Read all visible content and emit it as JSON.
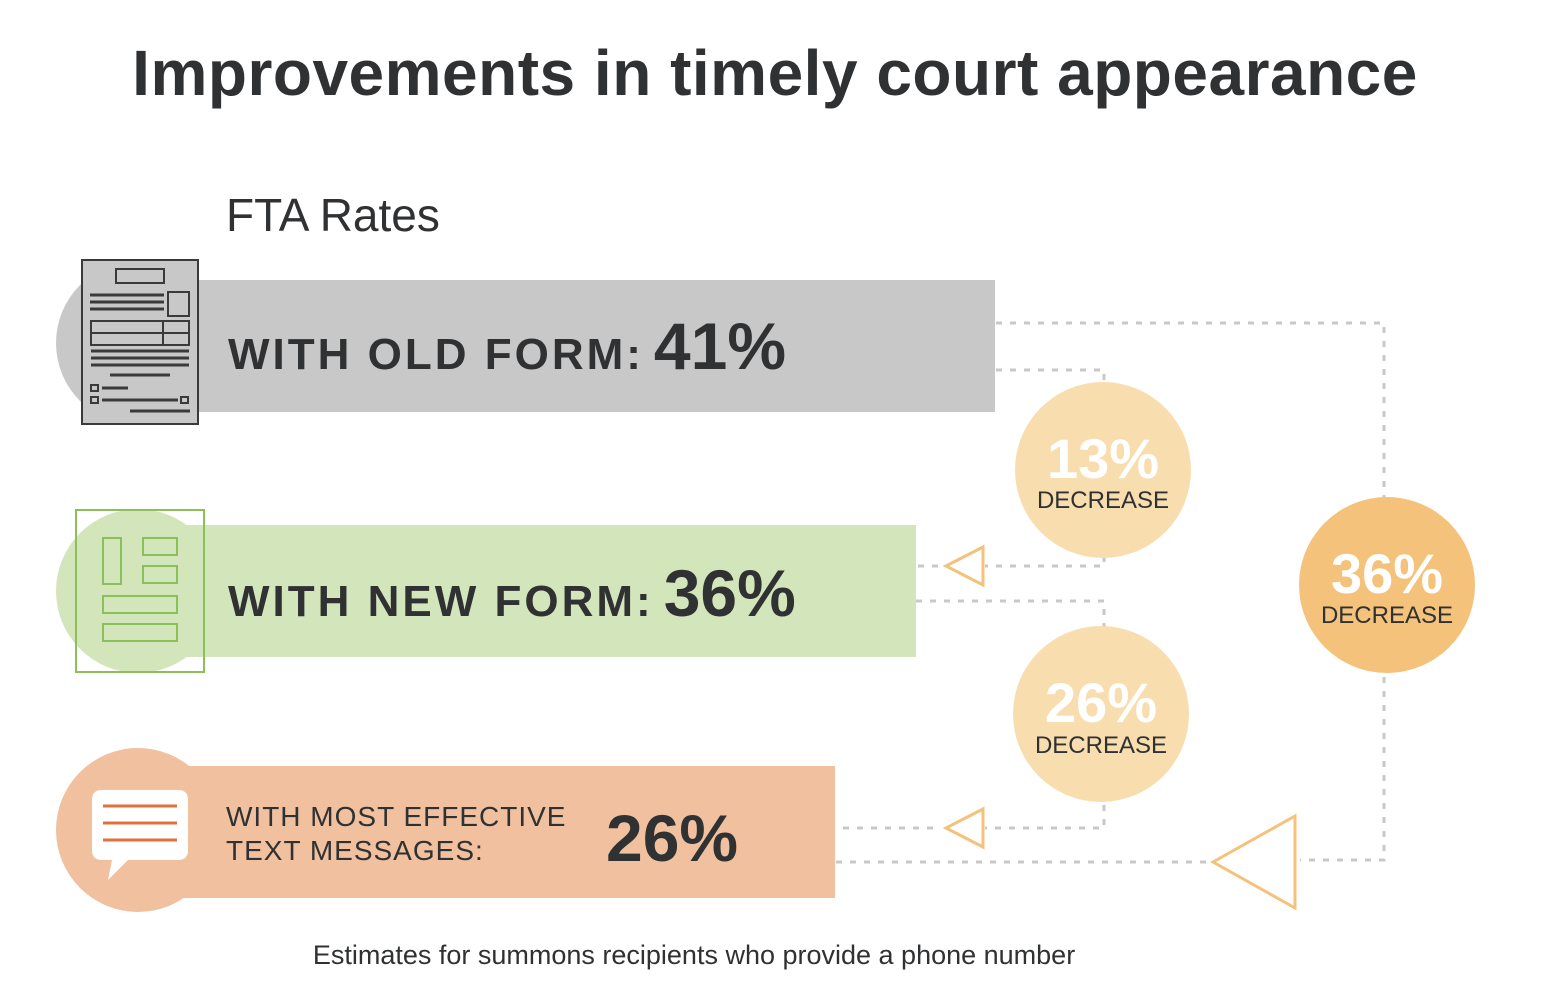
{
  "title": "Improvements in timely court appearance",
  "chart_data": {
    "type": "bar",
    "title": "Improvements in timely court appearance",
    "subtitle": "FTA Rates",
    "categories": [
      "WITH OLD FORM:",
      "WITH NEW FORM:",
      "WITH MOST EFFECTIVE TEXT MESSAGES:"
    ],
    "values": [
      41,
      36,
      26
    ],
    "value_labels": [
      "41%",
      "36%",
      "26%"
    ],
    "unit": "%",
    "colors": [
      "#c8c8c8",
      "#d3e5ba",
      "#f0c09f"
    ],
    "icons": [
      "old-form-document-icon",
      "new-form-document-icon",
      "text-message-icon"
    ],
    "decreases": [
      {
        "from": "WITH OLD FORM:",
        "to": "WITH NEW FORM:",
        "value": "13%",
        "label": "DECREASE",
        "color": "#f8ddaf"
      },
      {
        "from": "WITH NEW FORM:",
        "to": "WITH MOST EFFECTIVE TEXT MESSAGES:",
        "value": "26%",
        "label": "DECREASE",
        "color": "#f8ddaf"
      },
      {
        "from": "WITH OLD FORM:",
        "to": "WITH MOST EFFECTIVE TEXT MESSAGES:",
        "value": "36%",
        "label": "DECREASE",
        "color": "#f4c27a"
      }
    ],
    "footnote": "Estimates for summons recipients who provide a phone number"
  },
  "rows": {
    "old": {
      "label": "WITH OLD FORM:",
      "value": "41%"
    },
    "new": {
      "label": "WITH NEW FORM:",
      "value": "36%"
    },
    "text": {
      "label_line1": "WITH MOST EFFECTIVE",
      "label_line2": "TEXT MESSAGES:",
      "value": "26%"
    }
  },
  "colors": {
    "dark_text": "#2f3133",
    "dotted_line": "#c8c8c8",
    "arrow": "#f4c27a",
    "message_lines": "#e2703a"
  }
}
